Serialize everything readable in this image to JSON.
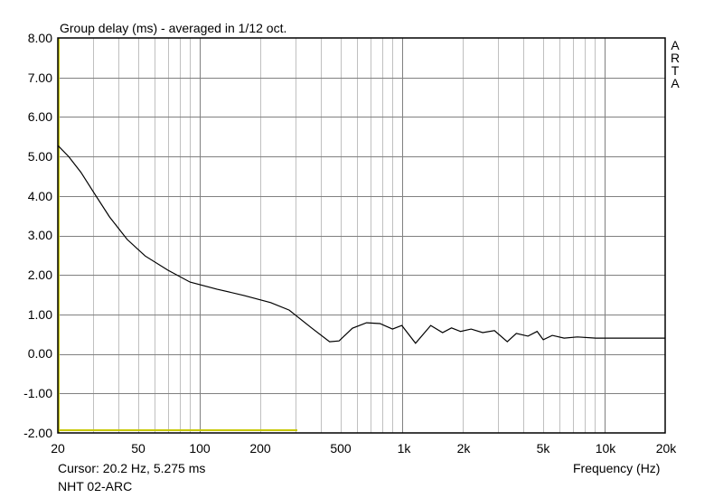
{
  "title": "Group delay (ms) - averaged in 1/12 oct.",
  "watermark": [
    "A",
    "R",
    "T",
    "A"
  ],
  "cursor_text": "Cursor: 20.2 Hz, 5.275 ms",
  "measurement_name": "NHT 02-ARC",
  "xlabel": "Frequency (Hz)",
  "y_ticks": [
    "8.00",
    "7.00",
    "6.00",
    "5.00",
    "4.00",
    "3.00",
    "2.00",
    "1.00",
    "0.00",
    "-1.00",
    "-2.00"
  ],
  "x_ticks": [
    "20",
    "50",
    "100",
    "200",
    "500",
    "1k",
    "2k",
    "5k",
    "10k",
    "20k"
  ],
  "colors": {
    "curve": "#000000",
    "major_grid": "#808080",
    "minor_grid": "#c0c0c0",
    "cursor": "#c8c800",
    "frame": "#000000",
    "background": "#ffffff"
  },
  "chart_data": {
    "type": "line",
    "title": "Group delay (ms) - averaged in 1/12 oct.",
    "xlabel": "Frequency (Hz)",
    "ylabel": "Group delay (ms)",
    "xscale": "log",
    "xlim": [
      20,
      20000
    ],
    "ylim": [
      -2,
      8
    ],
    "grid": true,
    "x_tick_labels": [
      "20",
      "50",
      "100",
      "200",
      "500",
      "1k",
      "2k",
      "5k",
      "10k",
      "20k"
    ],
    "y_tick_labels": [
      "8.00",
      "7.00",
      "6.00",
      "5.00",
      "4.00",
      "3.00",
      "2.00",
      "1.00",
      "0.00",
      "-1.00",
      "-2.00"
    ],
    "cursor": {
      "frequency_hz": 20.2,
      "value_ms": 5.275
    },
    "series": [
      {
        "name": "NHT 02-ARC",
        "x": [
          20,
          22.6,
          26,
          30,
          36,
          44,
          54,
          70,
          90,
          122,
          166,
          225,
          278,
          360,
          440,
          490,
          570,
          670,
          780,
          900,
          1000,
          1170,
          1390,
          1590,
          1760,
          1950,
          2200,
          2510,
          2870,
          3320,
          3680,
          4200,
          4660,
          5000,
          5540,
          6340,
          7390,
          9080,
          10600,
          12400,
          20000
        ],
        "values": [
          5.28,
          5.0,
          4.6,
          4.1,
          3.47,
          2.9,
          2.48,
          2.12,
          1.82,
          1.64,
          1.48,
          1.3,
          1.11,
          0.65,
          0.31,
          0.33,
          0.65,
          0.79,
          0.77,
          0.63,
          0.72,
          0.27,
          0.72,
          0.54,
          0.66,
          0.57,
          0.63,
          0.54,
          0.59,
          0.31,
          0.52,
          0.45,
          0.57,
          0.36,
          0.47,
          0.4,
          0.43,
          0.4,
          0.4,
          0.4,
          0.4
        ]
      }
    ],
    "annotations": [
      "Cursor: 20.2 Hz, 5.275 ms",
      "NHT 02-ARC",
      "ARTA"
    ]
  }
}
